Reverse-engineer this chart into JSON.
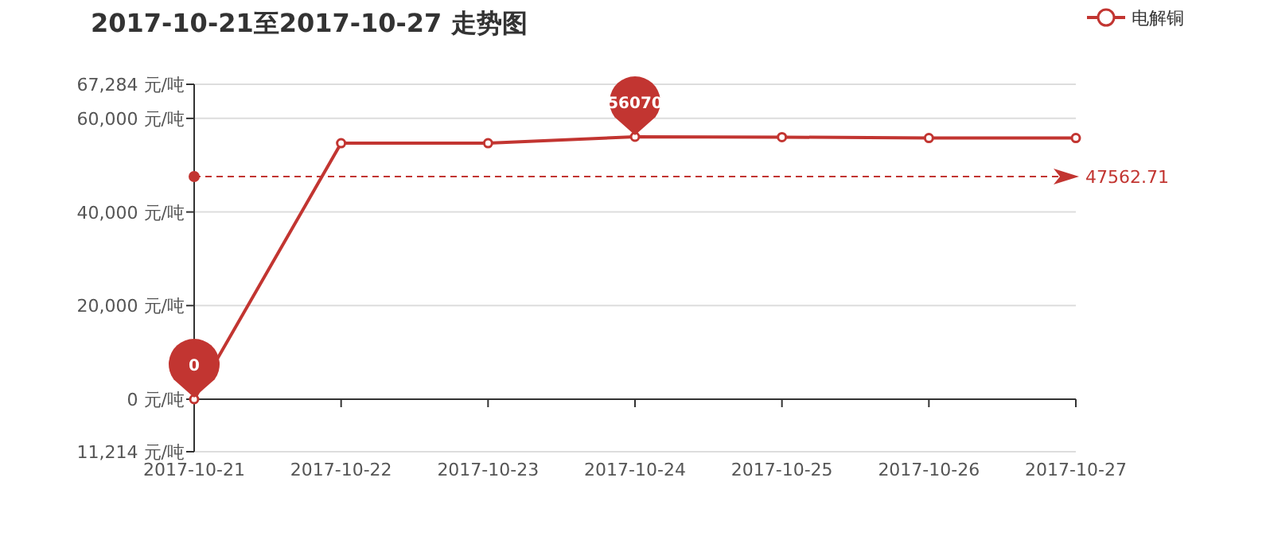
{
  "chart_data": {
    "type": "line",
    "title": "2017-10-21至2017-10-27 走势图",
    "categories": [
      "2017-10-21",
      "2017-10-22",
      "2017-10-23",
      "2017-10-24",
      "2017-10-25",
      "2017-10-26",
      "2017-10-27"
    ],
    "series": [
      {
        "name": "电解铜",
        "color": "#c23531",
        "values": [
          0,
          54700,
          54700,
          56070,
          56000,
          55800,
          55800
        ]
      }
    ],
    "ylim": [
      -11214,
      67284
    ],
    "yticks": [
      {
        "value": -11214,
        "label": "11,214 元/吨"
      },
      {
        "value": 0,
        "label": "0 元/吨"
      },
      {
        "value": 20000,
        "label": "20,000 元/吨"
      },
      {
        "value": 40000,
        "label": "40,000 元/吨"
      },
      {
        "value": 60000,
        "label": "60,000 元/吨"
      },
      {
        "value": 67284,
        "label": "67,284 元/吨"
      }
    ],
    "grid": "y",
    "legend": "top right",
    "marker": "circle",
    "line_style": "solid",
    "ref_lines": [
      {
        "axis": "y",
        "value": 47562.71,
        "label": "47562.71",
        "color": "#c23531",
        "line_style": "dashed"
      }
    ],
    "annotations": [
      {
        "text": "56070",
        "x": "2017-10-24",
        "y": 56070
      },
      {
        "text": "0",
        "x": "2017-10-21",
        "y": 0
      }
    ]
  }
}
